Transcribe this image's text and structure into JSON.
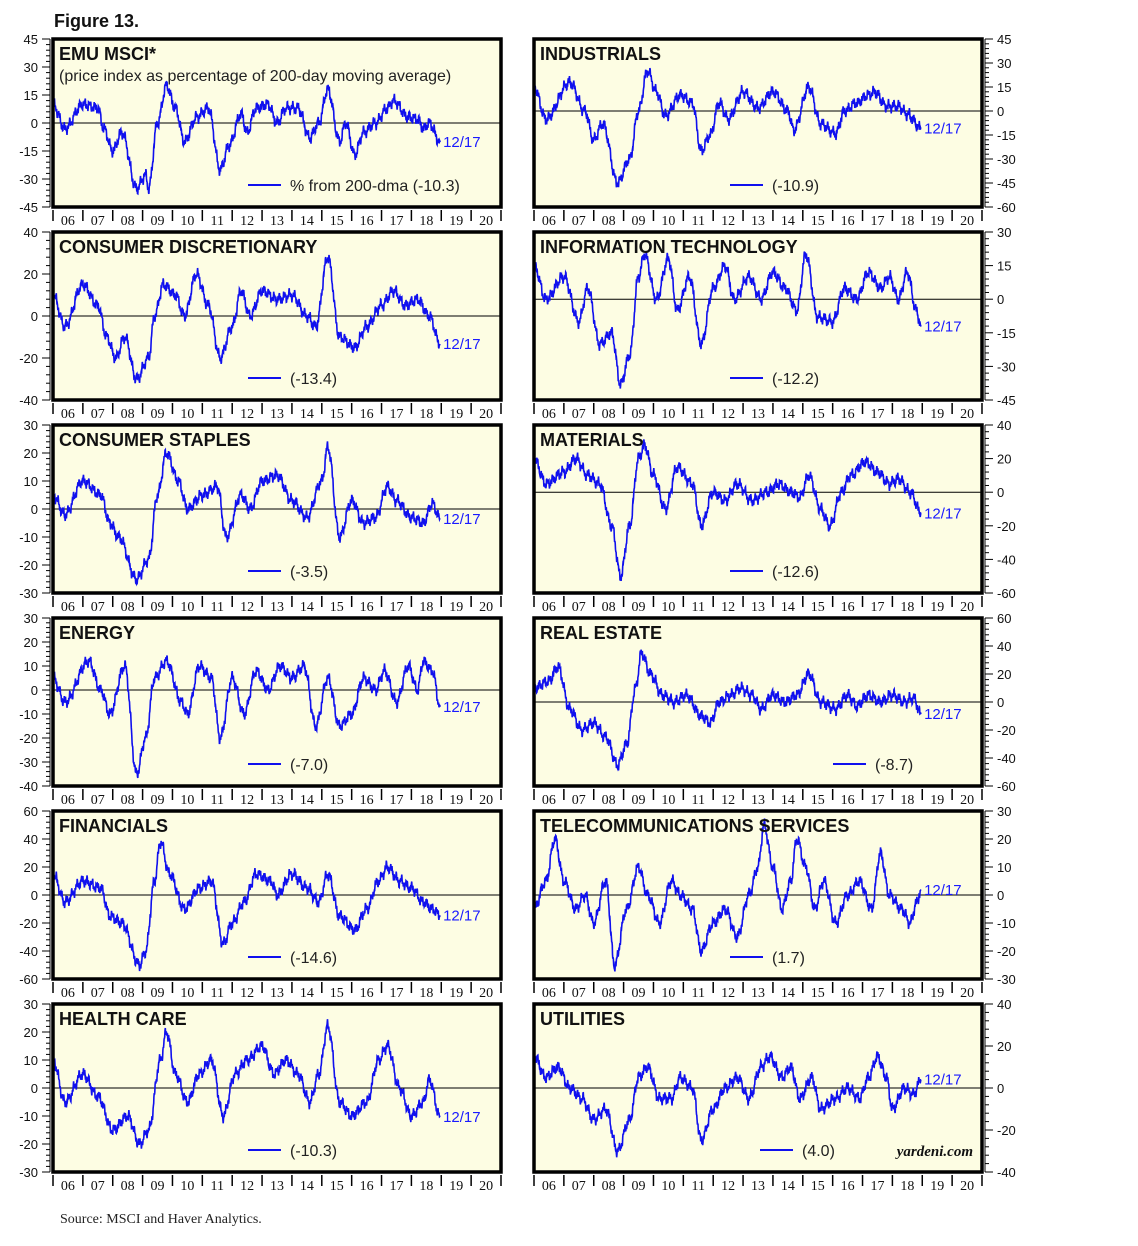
{
  "figure_title": "Figure 13.",
  "source": "Source: MSCI and Haver Analytics.",
  "watermark": "yardeni.com",
  "line_color": "#1010ee",
  "panel_bg": "#fdfde3",
  "chart_data": [
    {
      "type": "line",
      "title": "EMU MSCI*",
      "subtitle": "(price index as percentage of 200-day moving average)",
      "legend": "% from 200-dma (-10.3)",
      "end_label": "12/17",
      "axis_side": "left",
      "ylim": [
        -45,
        45
      ],
      "yticks": [
        45,
        30,
        15,
        0,
        -15,
        -30,
        -45
      ],
      "xticks": [
        "06",
        "07",
        "08",
        "09",
        "10",
        "11",
        "12",
        "13",
        "14",
        "15",
        "16",
        "17",
        "18",
        "19",
        "20"
      ],
      "x": [
        2006,
        2006.4,
        2007,
        2007.5,
        2007.7,
        2008,
        2008.3,
        2008.8,
        2009.1,
        2009.2,
        2009.5,
        2009.8,
        2010.1,
        2010.4,
        2010.8,
        2011.2,
        2011.6,
        2011.9,
        2012.3,
        2012.5,
        2012.8,
        2013.2,
        2013.5,
        2013.8,
        2014.2,
        2014.6,
        2014.9,
        2015.2,
        2015.6,
        2015.8,
        2016.1,
        2016.4,
        2016.8,
        2017.2,
        2017.4,
        2017.9,
        2018.2,
        2018.4,
        2018.6,
        2018.96
      ],
      "y": [
        10,
        -3,
        10,
        8,
        -3,
        -15,
        -5,
        -35,
        -28,
        -35,
        0,
        20,
        8,
        -10,
        3,
        8,
        -25,
        -12,
        5,
        -5,
        8,
        10,
        0,
        8,
        8,
        -8,
        0,
        18,
        -10,
        0,
        -17,
        -5,
        0,
        8,
        12,
        3,
        2,
        -3,
        0,
        -10.3
      ]
    },
    {
      "type": "line",
      "title": "INDUSTRIALS",
      "legend": "(-10.9)",
      "end_label": "12/17",
      "axis_side": "right",
      "ylim": [
        -60,
        45
      ],
      "yticks": [
        45,
        30,
        15,
        0,
        -15,
        -30,
        -45,
        -60
      ],
      "xticks": [
        "06",
        "07",
        "08",
        "09",
        "10",
        "11",
        "12",
        "13",
        "14",
        "15",
        "16",
        "17",
        "18",
        "19",
        "20"
      ],
      "x": [
        2006,
        2006.4,
        2007.2,
        2007.7,
        2008,
        2008.3,
        2008.8,
        2009.2,
        2009.5,
        2009.8,
        2010.1,
        2010.4,
        2010.9,
        2011.3,
        2011.6,
        2011.9,
        2012.2,
        2012.5,
        2013,
        2013.5,
        2014,
        2014.5,
        2014.7,
        2015.2,
        2015.6,
        2016.1,
        2016.4,
        2016.8,
        2017.2,
        2017.4,
        2017.8,
        2018.2,
        2018.5,
        2018.96
      ],
      "y": [
        15,
        -5,
        18,
        0,
        -18,
        -8,
        -45,
        -30,
        0,
        25,
        12,
        -3,
        10,
        5,
        -25,
        -15,
        5,
        -5,
        12,
        2,
        12,
        0,
        -12,
        15,
        -8,
        -14,
        0,
        5,
        10,
        12,
        3,
        3,
        -2,
        -10.9
      ]
    },
    {
      "type": "line",
      "title": "CONSUMER DISCRETIONARY",
      "legend": "(-13.4)",
      "end_label": "12/17",
      "axis_side": "left",
      "ylim": [
        -40,
        40
      ],
      "yticks": [
        40,
        20,
        0,
        -20,
        -40
      ],
      "xticks": [
        "06",
        "07",
        "08",
        "09",
        "10",
        "11",
        "12",
        "13",
        "14",
        "15",
        "16",
        "17",
        "18",
        "19",
        "20"
      ],
      "x": [
        2006,
        2006.4,
        2007,
        2007.5,
        2007.8,
        2008.1,
        2008.4,
        2008.8,
        2009.2,
        2009.4,
        2009.7,
        2010.1,
        2010.4,
        2010.8,
        2011.2,
        2011.6,
        2012,
        2012.3,
        2012.6,
        2013,
        2013.5,
        2014,
        2014.5,
        2014.8,
        2015.2,
        2015.6,
        2016.1,
        2016.5,
        2017,
        2017.4,
        2017.8,
        2018.2,
        2018.6,
        2018.96
      ],
      "y": [
        10,
        -5,
        15,
        5,
        -10,
        -20,
        -10,
        -30,
        -20,
        0,
        15,
        10,
        0,
        20,
        5,
        -20,
        -5,
        12,
        0,
        12,
        8,
        10,
        0,
        -5,
        28,
        -10,
        -15,
        -5,
        5,
        12,
        5,
        8,
        0,
        -13.4
      ]
    },
    {
      "type": "line",
      "title": "INFORMATION TECHNOLOGY",
      "legend": "(-12.2)",
      "end_label": "12/17",
      "axis_side": "right",
      "ylim": [
        -45,
        30
      ],
      "yticks": [
        30,
        15,
        0,
        -15,
        -30,
        -45
      ],
      "xticks": [
        "06",
        "07",
        "08",
        "09",
        "10",
        "11",
        "12",
        "13",
        "14",
        "15",
        "16",
        "17",
        "18",
        "19",
        "20"
      ],
      "x": [
        2006,
        2006.4,
        2007,
        2007.5,
        2007.8,
        2008.2,
        2008.6,
        2008.9,
        2009.2,
        2009.5,
        2009.7,
        2010.1,
        2010.5,
        2010.8,
        2011.2,
        2011.6,
        2012,
        2012.4,
        2012.7,
        2013.2,
        2013.6,
        2014,
        2014.4,
        2014.8,
        2015.1,
        2015.5,
        2016,
        2016.4,
        2016.8,
        2017.2,
        2017.6,
        2017.9,
        2018.2,
        2018.5,
        2018.8,
        2018.96
      ],
      "y": [
        15,
        0,
        10,
        -10,
        5,
        -20,
        -15,
        -38,
        -25,
        10,
        20,
        0,
        18,
        -5,
        10,
        -20,
        5,
        15,
        0,
        10,
        0,
        12,
        5,
        -5,
        20,
        -8,
        -10,
        5,
        0,
        12,
        5,
        10,
        0,
        12,
        -5,
        -12.2
      ]
    },
    {
      "type": "line",
      "title": "CONSUMER STAPLES",
      "legend": "(-3.5)",
      "end_label": "12/17",
      "axis_side": "left",
      "ylim": [
        -30,
        30
      ],
      "yticks": [
        30,
        20,
        10,
        0,
        -10,
        -20,
        -30
      ],
      "xticks": [
        "06",
        "07",
        "08",
        "09",
        "10",
        "11",
        "12",
        "13",
        "14",
        "15",
        "16",
        "17",
        "18",
        "19",
        "20"
      ],
      "x": [
        2006,
        2006.4,
        2007,
        2007.6,
        2007.9,
        2008.2,
        2008.8,
        2009.2,
        2009.5,
        2009.8,
        2010.2,
        2010.5,
        2011,
        2011.5,
        2011.8,
        2012.3,
        2012.6,
        2013,
        2013.5,
        2014,
        2014.5,
        2015,
        2015.2,
        2015.6,
        2016,
        2016.4,
        2016.8,
        2017.2,
        2017.5,
        2018,
        2018.4,
        2018.7,
        2018.96
      ],
      "y": [
        5,
        -2,
        10,
        5,
        -5,
        -10,
        -25,
        -18,
        5,
        20,
        10,
        0,
        5,
        8,
        -10,
        5,
        0,
        10,
        12,
        3,
        -3,
        10,
        22,
        -10,
        3,
        -5,
        -3,
        8,
        3,
        -3,
        -5,
        2,
        -3.5
      ]
    },
    {
      "type": "line",
      "title": "MATERIALS",
      "legend": "(-12.6)",
      "end_label": "12/17",
      "axis_side": "right",
      "ylim": [
        -60,
        40
      ],
      "yticks": [
        40,
        20,
        0,
        -20,
        -40,
        -60
      ],
      "xticks": [
        "06",
        "07",
        "08",
        "09",
        "10",
        "11",
        "12",
        "13",
        "14",
        "15",
        "16",
        "17",
        "18",
        "19",
        "20"
      ],
      "x": [
        2006,
        2006.4,
        2007,
        2007.4,
        2007.8,
        2008.2,
        2008.6,
        2008.9,
        2009.2,
        2009.5,
        2009.7,
        2010,
        2010.4,
        2010.8,
        2011.3,
        2011.6,
        2012,
        2012.4,
        2012.8,
        2013.3,
        2013.8,
        2014.2,
        2014.6,
        2014.9,
        2015.2,
        2015.6,
        2015.9,
        2016.3,
        2016.6,
        2017.1,
        2017.5,
        2017.9,
        2018.2,
        2018.6,
        2018.96
      ],
      "y": [
        20,
        5,
        12,
        20,
        10,
        5,
        -20,
        -50,
        -20,
        20,
        28,
        10,
        -10,
        15,
        5,
        -20,
        0,
        -5,
        5,
        -5,
        0,
        5,
        0,
        -3,
        10,
        -10,
        -20,
        0,
        10,
        18,
        12,
        5,
        8,
        0,
        -12.6
      ]
    },
    {
      "type": "line",
      "title": "ENERGY",
      "legend": "(-7.0)",
      "end_label": "12/17",
      "axis_side": "left",
      "ylim": [
        -40,
        30
      ],
      "yticks": [
        30,
        20,
        10,
        0,
        -10,
        -20,
        -30,
        -40
      ],
      "xticks": [
        "06",
        "07",
        "08",
        "09",
        "10",
        "11",
        "12",
        "13",
        "14",
        "15",
        "16",
        "17",
        "18",
        "19",
        "20"
      ],
      "x": [
        2006,
        2006.4,
        2007.2,
        2007.6,
        2007.9,
        2008.4,
        2008.8,
        2009.1,
        2009.4,
        2009.8,
        2010.3,
        2010.5,
        2010.9,
        2011.3,
        2011.6,
        2012,
        2012.4,
        2012.8,
        2013.2,
        2013.6,
        2014,
        2014.4,
        2014.8,
        2015.2,
        2015.6,
        2016,
        2016.4,
        2016.8,
        2017.1,
        2017.5,
        2017.9,
        2018.2,
        2018.4,
        2018.7,
        2018.96
      ],
      "y": [
        5,
        -5,
        12,
        0,
        -10,
        10,
        -35,
        -20,
        5,
        12,
        -5,
        -10,
        10,
        5,
        -20,
        5,
        -10,
        8,
        0,
        10,
        5,
        10,
        -15,
        5,
        -15,
        -10,
        5,
        0,
        8,
        -5,
        10,
        0,
        12,
        8,
        -7
      ]
    },
    {
      "type": "line",
      "title": "REAL ESTATE",
      "legend": "(-8.7)",
      "end_label": "12/17",
      "axis_side": "right",
      "ylim": [
        -60,
        60
      ],
      "yticks": [
        60,
        40,
        20,
        0,
        -20,
        -40,
        -60
      ],
      "xticks": [
        "06",
        "07",
        "08",
        "09",
        "10",
        "11",
        "12",
        "13",
        "14",
        "15",
        "16",
        "17",
        "18",
        "19",
        "20"
      ],
      "x": [
        2006,
        2006.5,
        2006.8,
        2007.2,
        2007.6,
        2008,
        2008.4,
        2008.8,
        2009.1,
        2009.4,
        2009.6,
        2009.9,
        2010.3,
        2010.7,
        2011.1,
        2011.6,
        2011.9,
        2012.2,
        2012.6,
        2012.9,
        2013.3,
        2013.6,
        2014,
        2014.4,
        2014.8,
        2015.2,
        2015.6,
        2016.1,
        2016.5,
        2016.8,
        2017.2,
        2017.6,
        2018,
        2018.4,
        2018.7,
        2018.96
      ],
      "y": [
        10,
        15,
        25,
        -5,
        -20,
        -15,
        -25,
        -45,
        -30,
        10,
        35,
        20,
        5,
        0,
        5,
        -10,
        -15,
        0,
        5,
        10,
        5,
        -5,
        5,
        0,
        5,
        20,
        0,
        -5,
        5,
        -3,
        5,
        0,
        5,
        0,
        3,
        -8.7
      ]
    },
    {
      "type": "line",
      "title": "FINANCIALS",
      "legend": "(-14.6)",
      "end_label": "12/17",
      "axis_side": "left",
      "ylim": [
        -60,
        60
      ],
      "yticks": [
        60,
        40,
        20,
        0,
        -20,
        -40,
        -60
      ],
      "xticks": [
        "06",
        "07",
        "08",
        "09",
        "10",
        "11",
        "12",
        "13",
        "14",
        "15",
        "16",
        "17",
        "18",
        "19",
        "20"
      ],
      "x": [
        2006,
        2006.4,
        2007,
        2007.6,
        2007.9,
        2008.3,
        2008.9,
        2009.1,
        2009.4,
        2009.6,
        2009.9,
        2010.4,
        2010.9,
        2011.3,
        2011.7,
        2012,
        2012.4,
        2012.8,
        2013.3,
        2013.5,
        2014,
        2014.5,
        2014.9,
        2015.2,
        2015.6,
        2016.1,
        2016.5,
        2016.9,
        2017.2,
        2017.6,
        2018,
        2018.4,
        2018.7,
        2018.96
      ],
      "y": [
        15,
        -5,
        10,
        5,
        -15,
        -20,
        -50,
        -40,
        10,
        38,
        15,
        -10,
        5,
        10,
        -35,
        -20,
        -5,
        15,
        10,
        0,
        15,
        5,
        -5,
        15,
        -15,
        -25,
        -10,
        10,
        20,
        10,
        5,
        -5,
        -10,
        -14.6
      ]
    },
    {
      "type": "line",
      "title": "TELECOMMUNICATIONS SERVICES",
      "legend": "(1.7)",
      "end_label": "12/17",
      "axis_side": "right",
      "ylim": [
        -30,
        30
      ],
      "yticks": [
        30,
        20,
        10,
        0,
        -10,
        -20,
        -30
      ],
      "xticks": [
        "06",
        "07",
        "08",
        "09",
        "10",
        "11",
        "12",
        "13",
        "14",
        "15",
        "16",
        "17",
        "18",
        "19",
        "20"
      ],
      "x": [
        2006,
        2006.4,
        2006.7,
        2007,
        2007.4,
        2007.7,
        2008,
        2008.4,
        2008.7,
        2009.1,
        2009.5,
        2009.8,
        2010.2,
        2010.6,
        2010.9,
        2011.3,
        2011.6,
        2012,
        2012.4,
        2012.8,
        2013.2,
        2013.5,
        2013.7,
        2014,
        2014.3,
        2014.6,
        2014.8,
        2015.1,
        2015.4,
        2015.7,
        2016.1,
        2016.5,
        2016.9,
        2017.3,
        2017.6,
        2017.9,
        2018.3,
        2018.6,
        2018.8,
        2018.96
      ],
      "y": [
        -5,
        5,
        20,
        5,
        -5,
        0,
        -10,
        5,
        -25,
        -5,
        10,
        0,
        -10,
        5,
        0,
        -5,
        -20,
        -10,
        -5,
        -15,
        0,
        10,
        25,
        10,
        -5,
        5,
        20,
        10,
        -5,
        5,
        -10,
        0,
        5,
        -5,
        15,
        0,
        -5,
        -10,
        -3,
        1.7
      ]
    },
    {
      "type": "line",
      "title": "HEALTH CARE",
      "legend": "(-10.3)",
      "end_label": "12/17",
      "axis_side": "left",
      "ylim": [
        -30,
        30
      ],
      "yticks": [
        30,
        20,
        10,
        0,
        -10,
        -20,
        -30
      ],
      "xticks": [
        "06",
        "07",
        "08",
        "09",
        "10",
        "11",
        "12",
        "13",
        "14",
        "15",
        "16",
        "17",
        "18",
        "19",
        "20"
      ],
      "x": [
        2006,
        2006.4,
        2007,
        2007.5,
        2008,
        2008.5,
        2008.9,
        2009.2,
        2009.6,
        2009.8,
        2010.1,
        2010.5,
        2010.9,
        2011.3,
        2011.7,
        2012.1,
        2012.5,
        2013,
        2013.4,
        2013.8,
        2014.2,
        2014.6,
        2014.9,
        2015.2,
        2015.6,
        2016,
        2016.5,
        2016.9,
        2017.2,
        2017.6,
        2018,
        2018.4,
        2018.6,
        2018.96
      ],
      "y": [
        10,
        -5,
        5,
        -3,
        -15,
        -10,
        -20,
        -15,
        10,
        20,
        5,
        -5,
        5,
        10,
        -10,
        5,
        10,
        15,
        5,
        10,
        5,
        -5,
        5,
        22,
        -5,
        -10,
        -5,
        10,
        15,
        0,
        -10,
        -5,
        3,
        -10.3
      ]
    },
    {
      "type": "line",
      "title": "UTILITIES",
      "legend": "(4.0)",
      "end_label": "12/17",
      "axis_side": "right",
      "ylim": [
        -40,
        40
      ],
      "yticks": [
        40,
        20,
        0,
        -20,
        -40
      ],
      "xticks": [
        "06",
        "07",
        "08",
        "09",
        "10",
        "11",
        "12",
        "13",
        "14",
        "15",
        "16",
        "17",
        "18",
        "19",
        "20"
      ],
      "x": [
        2006,
        2006.4,
        2006.8,
        2007.2,
        2007.6,
        2008,
        2008.4,
        2008.8,
        2009.2,
        2009.5,
        2009.8,
        2010.2,
        2010.6,
        2010.9,
        2011.3,
        2011.6,
        2012,
        2012.4,
        2012.8,
        2013.2,
        2013.6,
        2013.9,
        2014.3,
        2014.6,
        2014.9,
        2015.3,
        2015.6,
        2016.1,
        2016.5,
        2016.9,
        2017.2,
        2017.5,
        2017.8,
        2018,
        2018.4,
        2018.7,
        2018.96
      ],
      "y": [
        15,
        5,
        10,
        0,
        -5,
        -15,
        -10,
        -30,
        -15,
        5,
        10,
        -5,
        -5,
        5,
        0,
        -25,
        -10,
        0,
        5,
        -5,
        10,
        15,
        5,
        10,
        -5,
        5,
        -10,
        -5,
        0,
        -5,
        5,
        15,
        5,
        -10,
        0,
        -3,
        4
      ]
    }
  ]
}
